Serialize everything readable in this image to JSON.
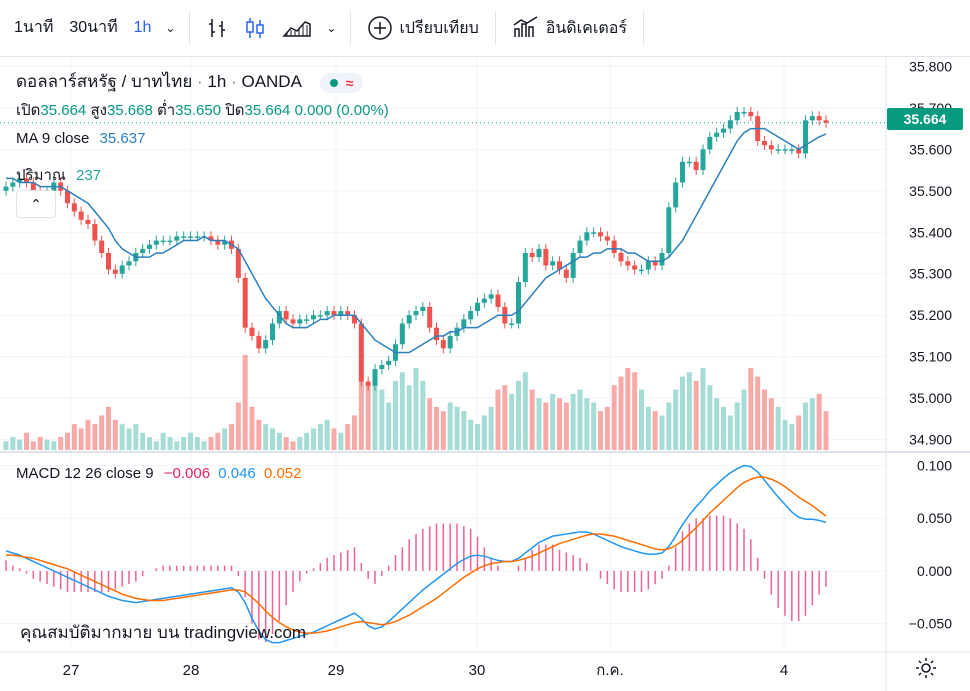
{
  "toolbar": {
    "timeframes": [
      "1นาที",
      "30นาที",
      "1h"
    ],
    "active_timeframe": "1h",
    "compare_label": "เปรียบเทียบ",
    "indicators_label": "อินดิเคเตอร์"
  },
  "legend": {
    "symbol": "ดอลลาร์สหรัฐ / บาทไทย",
    "interval": "1h",
    "source": "OANDA",
    "open_label": "เปิด",
    "open": "35.664",
    "high_label": "สูง",
    "high": "35.668",
    "low_label": "ต่ำ",
    "low": "35.650",
    "close_label": "ปิด",
    "close": "35.664",
    "change": "0.000 (0.00%)",
    "ma_label": "MA 9 close",
    "ma_value": "35.637",
    "volume_label": "ปริมาณ",
    "volume_value": "237",
    "macd_label": "MACD 12 26 close 9",
    "macd_hist": "−0.006",
    "macd_line": "0.046",
    "macd_signal": "0.052"
  },
  "last_price": "35.664",
  "watermark": "คุณสมบัติมากมาย บน tradingview.com",
  "colors": {
    "up": "#26a69a",
    "down": "#ef5350",
    "ma": "#2a7fbd",
    "macd": "#2196f3",
    "signal": "#ff6d00",
    "hist": "#e91e63"
  },
  "chart_data": [
    {
      "type": "candlestick",
      "title": "ดอลลาร์สหรัฐ / บาทไทย · 1h · OANDA",
      "y_ticks": [
        "35.800",
        "35.700",
        "35.600",
        "35.500",
        "35.400",
        "35.300",
        "35.200",
        "35.100",
        "35.000",
        "34.900"
      ],
      "ylim": [
        34.875,
        35.825
      ],
      "x_ticks": [
        "27",
        "28",
        "29",
        "30",
        "ก.ค.",
        "4"
      ],
      "closes": [
        35.51,
        35.52,
        35.53,
        35.52,
        35.5,
        35.49,
        35.5,
        35.52,
        35.5,
        35.47,
        35.45,
        35.43,
        35.42,
        35.38,
        35.35,
        35.31,
        35.3,
        35.32,
        35.33,
        35.35,
        35.36,
        35.37,
        35.38,
        35.38,
        35.38,
        35.39,
        35.39,
        35.39,
        35.39,
        35.39,
        35.38,
        35.37,
        35.38,
        35.36,
        35.29,
        35.17,
        35.15,
        35.12,
        35.14,
        35.18,
        35.21,
        35.19,
        35.18,
        35.19,
        35.19,
        35.2,
        35.2,
        35.21,
        35.2,
        35.21,
        35.2,
        35.18,
        35.04,
        35.03,
        35.07,
        35.08,
        35.09,
        35.13,
        35.18,
        35.2,
        35.21,
        35.22,
        35.17,
        35.14,
        35.12,
        35.15,
        35.17,
        35.19,
        35.21,
        35.23,
        35.24,
        35.25,
        35.22,
        35.18,
        35.18,
        35.28,
        35.35,
        35.34,
        35.36,
        35.32,
        35.33,
        35.31,
        35.29,
        35.35,
        35.38,
        35.4,
        35.4,
        35.39,
        35.38,
        35.35,
        35.33,
        35.32,
        35.31,
        35.31,
        35.33,
        35.32,
        35.35,
        35.46,
        35.52,
        35.57,
        35.57,
        35.55,
        35.6,
        35.63,
        35.64,
        35.65,
        35.67,
        35.69,
        35.69,
        35.68,
        35.62,
        35.61,
        35.6,
        35.6,
        35.6,
        35.6,
        35.59,
        35.67,
        35.68,
        35.67,
        35.664
      ],
      "ma9": [
        35.53,
        35.53,
        35.52,
        35.52,
        35.52,
        35.51,
        35.51,
        35.51,
        35.51,
        35.5,
        35.49,
        35.48,
        35.47,
        35.45,
        35.43,
        35.41,
        35.38,
        35.36,
        35.35,
        35.34,
        35.34,
        35.34,
        35.35,
        35.35,
        35.36,
        35.37,
        35.38,
        35.38,
        35.38,
        35.39,
        35.38,
        35.38,
        35.38,
        35.37,
        35.36,
        35.33,
        35.3,
        35.27,
        35.24,
        35.22,
        35.2,
        35.18,
        35.17,
        35.17,
        35.17,
        35.18,
        35.19,
        35.19,
        35.2,
        35.2,
        35.2,
        35.2,
        35.18,
        35.16,
        35.14,
        35.13,
        35.12,
        35.11,
        35.11,
        35.11,
        35.12,
        35.13,
        35.14,
        35.15,
        35.15,
        35.16,
        35.16,
        35.17,
        35.17,
        35.17,
        35.18,
        35.19,
        35.2,
        35.2,
        35.2,
        35.21,
        35.23,
        35.25,
        35.27,
        35.29,
        35.3,
        35.31,
        35.32,
        35.33,
        35.34,
        35.34,
        35.35,
        35.35,
        35.36,
        35.36,
        35.36,
        35.35,
        35.35,
        35.34,
        35.33,
        35.33,
        35.33,
        35.34,
        35.36,
        35.38,
        35.41,
        35.44,
        35.47,
        35.5,
        35.53,
        35.56,
        35.59,
        35.62,
        35.64,
        35.65,
        35.65,
        35.65,
        35.64,
        35.63,
        35.62,
        35.61,
        35.6,
        35.61,
        35.62,
        35.63,
        35.637
      ]
    },
    {
      "type": "bar",
      "title": "ปริมาณ 237",
      "volume_relative": [
        0.1,
        0.15,
        0.12,
        0.2,
        0.1,
        0.15,
        0.12,
        0.1,
        0.15,
        0.2,
        0.3,
        0.25,
        0.35,
        0.3,
        0.4,
        0.5,
        0.35,
        0.3,
        0.25,
        0.3,
        0.2,
        0.15,
        0.1,
        0.2,
        0.15,
        0.1,
        0.15,
        0.2,
        0.15,
        0.1,
        0.15,
        0.2,
        0.25,
        0.3,
        0.55,
        1.1,
        0.5,
        0.35,
        0.3,
        0.25,
        0.2,
        0.15,
        0.1,
        0.15,
        0.2,
        0.25,
        0.3,
        0.35,
        0.25,
        0.2,
        0.3,
        0.4,
        0.85,
        0.75,
        0.9,
        0.7,
        0.55,
        0.8,
        0.9,
        0.75,
        0.95,
        0.8,
        0.6,
        0.5,
        0.45,
        0.55,
        0.5,
        0.45,
        0.35,
        0.3,
        0.4,
        0.5,
        0.7,
        0.75,
        0.65,
        0.8,
        0.9,
        0.7,
        0.6,
        0.55,
        0.65,
        0.6,
        0.55,
        0.65,
        0.7,
        0.6,
        0.55,
        0.45,
        0.5,
        0.75,
        0.85,
        0.95,
        0.9,
        0.7,
        0.5,
        0.45,
        0.4,
        0.55,
        0.7,
        0.85,
        0.9,
        0.8,
        0.95,
        0.75,
        0.6,
        0.5,
        0.4,
        0.55,
        0.7,
        0.95,
        0.85,
        0.7,
        0.6,
        0.5,
        0.35,
        0.3,
        0.4,
        0.55,
        0.6,
        0.65,
        0.45
      ]
    },
    {
      "type": "line",
      "title": "MACD 12 26 close 9",
      "y_ticks": [
        "0.100",
        "0.050",
        "0.000",
        "−0.050"
      ],
      "ylim": [
        -0.075,
        0.11
      ],
      "series": [
        {
          "name": "MACD",
          "values": [
            0.019,
            0.017,
            0.015,
            0.012,
            0.009,
            0.006,
            0.003,
            0.0,
            -0.003,
            -0.006,
            -0.009,
            -0.012,
            -0.015,
            -0.018,
            -0.021,
            -0.024,
            -0.026,
            -0.028,
            -0.029,
            -0.03,
            -0.029,
            -0.028,
            -0.027,
            -0.026,
            -0.025,
            -0.024,
            -0.023,
            -0.022,
            -0.021,
            -0.02,
            -0.019,
            -0.018,
            -0.017,
            -0.016,
            -0.02,
            -0.03,
            -0.045,
            -0.057,
            -0.065,
            -0.068,
            -0.068,
            -0.066,
            -0.064,
            -0.062,
            -0.06,
            -0.058,
            -0.055,
            -0.052,
            -0.049,
            -0.046,
            -0.043,
            -0.04,
            -0.045,
            -0.052,
            -0.055,
            -0.053,
            -0.048,
            -0.042,
            -0.036,
            -0.03,
            -0.024,
            -0.018,
            -0.013,
            -0.008,
            -0.003,
            0.002,
            0.007,
            0.011,
            0.014,
            0.015,
            0.014,
            0.012,
            0.01,
            0.009,
            0.009,
            0.012,
            0.017,
            0.022,
            0.027,
            0.03,
            0.033,
            0.034,
            0.035,
            0.036,
            0.037,
            0.037,
            0.035,
            0.032,
            0.029,
            0.026,
            0.023,
            0.021,
            0.019,
            0.017,
            0.016,
            0.016,
            0.017,
            0.023,
            0.033,
            0.044,
            0.053,
            0.061,
            0.068,
            0.076,
            0.082,
            0.088,
            0.093,
            0.097,
            0.1,
            0.099,
            0.094,
            0.086,
            0.078,
            0.07,
            0.063,
            0.056,
            0.051,
            0.049,
            0.049,
            0.048,
            0.046
          ]
        },
        {
          "name": "Signal",
          "values": [
            0.015,
            0.015,
            0.014,
            0.013,
            0.012,
            0.01,
            0.008,
            0.006,
            0.004,
            0.002,
            -0.001,
            -0.004,
            -0.007,
            -0.01,
            -0.013,
            -0.016,
            -0.019,
            -0.022,
            -0.024,
            -0.026,
            -0.027,
            -0.028,
            -0.028,
            -0.028,
            -0.027,
            -0.026,
            -0.025,
            -0.024,
            -0.023,
            -0.022,
            -0.021,
            -0.02,
            -0.019,
            -0.018,
            -0.018,
            -0.02,
            -0.025,
            -0.031,
            -0.038,
            -0.044,
            -0.049,
            -0.053,
            -0.056,
            -0.058,
            -0.059,
            -0.059,
            -0.058,
            -0.057,
            -0.055,
            -0.053,
            -0.051,
            -0.049,
            -0.048,
            -0.049,
            -0.05,
            -0.051,
            -0.05,
            -0.048,
            -0.045,
            -0.042,
            -0.038,
            -0.034,
            -0.03,
            -0.026,
            -0.021,
            -0.016,
            -0.011,
            -0.006,
            -0.002,
            0.002,
            0.005,
            0.007,
            0.008,
            0.009,
            0.009,
            0.01,
            0.012,
            0.014,
            0.017,
            0.02,
            0.023,
            0.026,
            0.028,
            0.03,
            0.032,
            0.034,
            0.035,
            0.035,
            0.034,
            0.033,
            0.031,
            0.029,
            0.027,
            0.025,
            0.023,
            0.021,
            0.02,
            0.021,
            0.024,
            0.029,
            0.035,
            0.041,
            0.048,
            0.055,
            0.061,
            0.067,
            0.073,
            0.079,
            0.084,
            0.087,
            0.089,
            0.089,
            0.087,
            0.084,
            0.08,
            0.075,
            0.07,
            0.066,
            0.062,
            0.057,
            0.052
          ]
        }
      ]
    }
  ]
}
